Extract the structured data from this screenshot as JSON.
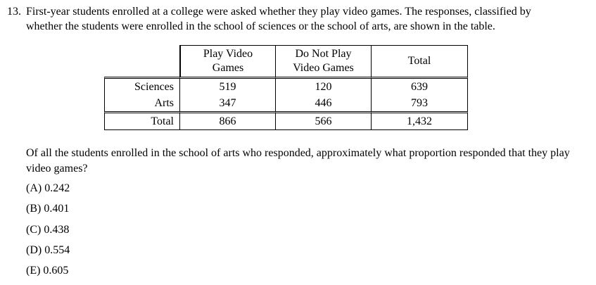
{
  "question": {
    "number": "13.",
    "intro_line1": "First-year students enrolled at a college were asked whether they play video games. The responses, classified by",
    "intro_line2": "whether the students were enrolled in the school of sciences or the school of arts, are shown in the table.",
    "prompt": "Of all the students enrolled in the school of arts who responded, approximately what proportion responded that they play video games?"
  },
  "table": {
    "col_headers": [
      "Play Video Games",
      "Do Not Play Video Games",
      "Total"
    ],
    "col_headers_lines": [
      [
        "Play Video",
        "Games"
      ],
      [
        "Do Not Play",
        "Video Games"
      ],
      [
        "Total"
      ]
    ],
    "rows": [
      {
        "label": "Sciences",
        "values": [
          "519",
          "120",
          "639"
        ]
      },
      {
        "label": "Arts",
        "values": [
          "347",
          "446",
          "793"
        ]
      },
      {
        "label": "Total",
        "values": [
          "866",
          "566",
          "1,432"
        ]
      }
    ]
  },
  "choices": [
    "(A) 0.242",
    "(B) 0.401",
    "(C) 0.438",
    "(D) 0.554",
    "(E) 0.605"
  ]
}
